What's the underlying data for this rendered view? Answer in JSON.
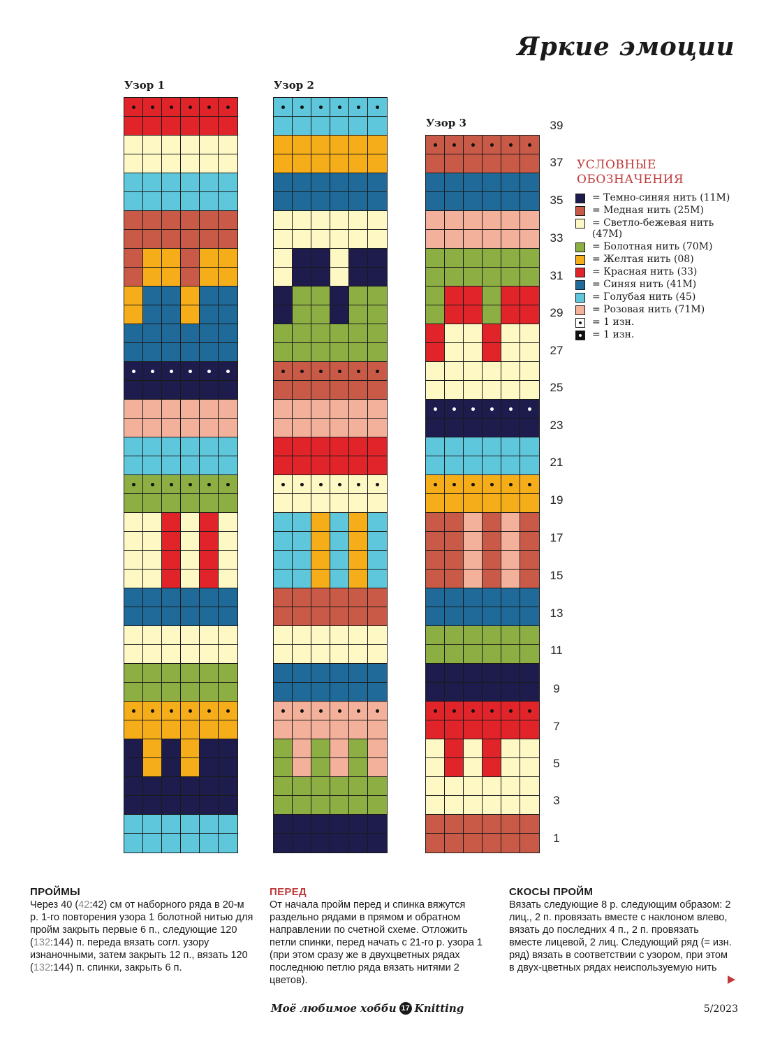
{
  "page": {
    "title": "Яркие эмоции",
    "issue": "5/2023",
    "footer": {
      "magazine": "Моё любимое хобби",
      "page_number": "17",
      "brand": "Knitting"
    }
  },
  "colors": {
    "N": "#1e1b4d",
    "M": "#c95a48",
    "B": "#fdf8c4",
    "G": "#8cae43",
    "Y": "#f6ad1a",
    "R": "#e1242a",
    "S": "#1f6a99",
    "L": "#5ec7dc",
    "P": "#f3b09a"
  },
  "legend": {
    "title": "Условные обозначения",
    "items": [
      {
        "color": "N",
        "label": "= Темно-синяя нить (11M)"
      },
      {
        "color": "M",
        "label": "= Медная нить (25M)"
      },
      {
        "color": "B",
        "label": "= Светло-бежевая нить (47M)"
      },
      {
        "color": "G",
        "label": "= Болотная нить (70M)"
      },
      {
        "color": "Y",
        "label": "= Желтая нить (08)"
      },
      {
        "color": "R",
        "label": "= Красная нить (33)"
      },
      {
        "color": "S",
        "label": "= Синяя нить (41M)"
      },
      {
        "color": "L",
        "label": "= Голубая нить (45)"
      },
      {
        "color": "P",
        "label": "= Розовая нить (71M)"
      },
      {
        "symbol": "white-dot",
        "label": "= 1 изн."
      },
      {
        "symbol": "black-dot",
        "label": "= 1 изн."
      }
    ]
  },
  "row_numbers": [
    "39",
    "37",
    "35",
    "33",
    "31",
    "29",
    "27",
    "25",
    "23",
    "21",
    "19",
    "17",
    "15",
    "13",
    "11",
    "9",
    "7",
    "5",
    "3",
    "1"
  ],
  "charts": [
    {
      "label": "Узор 1",
      "rows": [
        "RRRRRR",
        "RRRRRR",
        "BBBBBB",
        "BBBBBB",
        "LLLLLL",
        "LLLLLL",
        "MMMMMM",
        "MMMMMM",
        "MYYMYY",
        "MYYMYY",
        "YSSYSS",
        "YSSYSS",
        "SSSSSS",
        "SSSSSS",
        "NNNNNN",
        "NNNNNN",
        "PPPPPP",
        "PPPPPP",
        "LLLLLL",
        "LLLLLL",
        "GGGGGG",
        "GGGGGG",
        "BBRBRB",
        "BBRBRB",
        "BBRBRB",
        "BBRBRB",
        "SSSSSS",
        "SSSSSS",
        "BBBBBB",
        "BBBBBB",
        "GGGGGG",
        "GGGGGG",
        "YYYYYY",
        "YYYYYY",
        "NYNYNN",
        "NYNYNN",
        "NNNNNN",
        "NNNNNN",
        "LLLLLL",
        "LLLLLL"
      ],
      "purl_rows": [
        {
          "row": 0,
          "dot": "black"
        },
        {
          "row": 14,
          "dot": "white"
        },
        {
          "row": 20,
          "dot": "black"
        },
        {
          "row": 32,
          "dot": "black"
        }
      ]
    },
    {
      "label": "Узор 2",
      "rows": [
        "LLLLLL",
        "LLLLLL",
        "YYYYYY",
        "YYYYYY",
        "SSSSSS",
        "SSSSSS",
        "BBBBBB",
        "BBBBBB",
        "BNNBNN",
        "BNNBNN",
        "NGGNGG",
        "NGGNGG",
        "GGGGGG",
        "GGGGGG",
        "MMMMMM",
        "MMMMMM",
        "PPPPPP",
        "PPPPPP",
        "RRRRRR",
        "RRRRRR",
        "BBBBBB",
        "BBBBBB",
        "LLYLYL",
        "LLYLYL",
        "LLYLYL",
        "LLYLYL",
        "MMMMMM",
        "MMMMMM",
        "BBBBBB",
        "BBBBBB",
        "SSSSSS",
        "SSSSSS",
        "PPPPPP",
        "PPPPPP",
        "GPGPGP",
        "GPGPGP",
        "GGGGGG",
        "GGGGGG",
        "NNNNNN",
        "NNNNNN"
      ],
      "purl_rows": [
        {
          "row": 0,
          "dot": "black"
        },
        {
          "row": 14,
          "dot": "black"
        },
        {
          "row": 20,
          "dot": "black"
        },
        {
          "row": 32,
          "dot": "black"
        }
      ]
    },
    {
      "label": "Узор 3",
      "rows": [
        "MMMMMM",
        "MMMMMM",
        "SSSSSS",
        "SSSSSS",
        "PPPPPP",
        "PPPPPP",
        "GGGGGG",
        "GGGGGG",
        "GRRGRR",
        "GRRGRR",
        "RBBRBB",
        "RBBRBB",
        "BBBBBB",
        "BBBBBB",
        "NNNNNN",
        "NNNNNN",
        "LLLLLL",
        "LLLLLL",
        "YYYYYY",
        "YYYYYY",
        "MMPMPM",
        "MMPMPM",
        "MMPMPM",
        "MMPMPM",
        "SSSSSS",
        "SSSSSS",
        "GGGGGG",
        "GGGGGG",
        "NNNNNN",
        "NNNNNN",
        "RRRRRR",
        "RRRRRR",
        "BRBRBB",
        "BRBRBB",
        "BBBBBB",
        "BBBBBB",
        "MMMMMM",
        "MMMMMM"
      ],
      "purl_rows": [
        {
          "row": 0,
          "dot": "black"
        },
        {
          "row": 14,
          "dot": "white"
        },
        {
          "row": 18,
          "dot": "black"
        },
        {
          "row": 30,
          "dot": "black"
        }
      ]
    }
  ],
  "sections": [
    {
      "heading": "ПРОЙМЫ",
      "heading_color": "#1a1a1a",
      "parts": [
        {
          "t": "Через 40 ("
        },
        {
          "t": "42",
          "hl": true
        },
        {
          "t": ":42) см от наборного ряда в 20-м р. 1-го повторения узора 1 болотной нитью для пройм закрыть первые 6 п., следующие 120 ("
        },
        {
          "t": "132",
          "hl": true
        },
        {
          "t": ":144) п. переда вязать согл. узору изнаночными, затем закрыть 12 п., вязать 120 ("
        },
        {
          "t": "132",
          "hl": true
        },
        {
          "t": ":144) п. спинки, закрыть 6 п."
        }
      ]
    },
    {
      "heading": "ПЕРЕД",
      "heading_color": "#c0393b",
      "parts": [
        {
          "t": "От начала пройм перед и спинка вяжутся раздельно рядами в прямом и обратном направлении по счетной схеме. Отложить петли спинки, перед начать с 21-го р. узора 1 (при этом сразу же в двухцветных рядах последнюю петлю ряда вязать нитями 2 цветов)."
        }
      ]
    },
    {
      "heading": "СКОСЫ ПРОЙМ",
      "heading_color": "#1a1a1a",
      "parts": [
        {
          "t": "Вязать следующие 8 р. следующим образом: 2 лиц., 2 п. провязать вместе с наклоном влево, вязать до последних 4 п., 2 п. провязать вместе лицевой, 2 лиц. Следующий ряд (= изн. ряд) вязать в соответствии с узором, при этом в двух-цветных рядах неиспользуемую нить"
        }
      ]
    }
  ]
}
